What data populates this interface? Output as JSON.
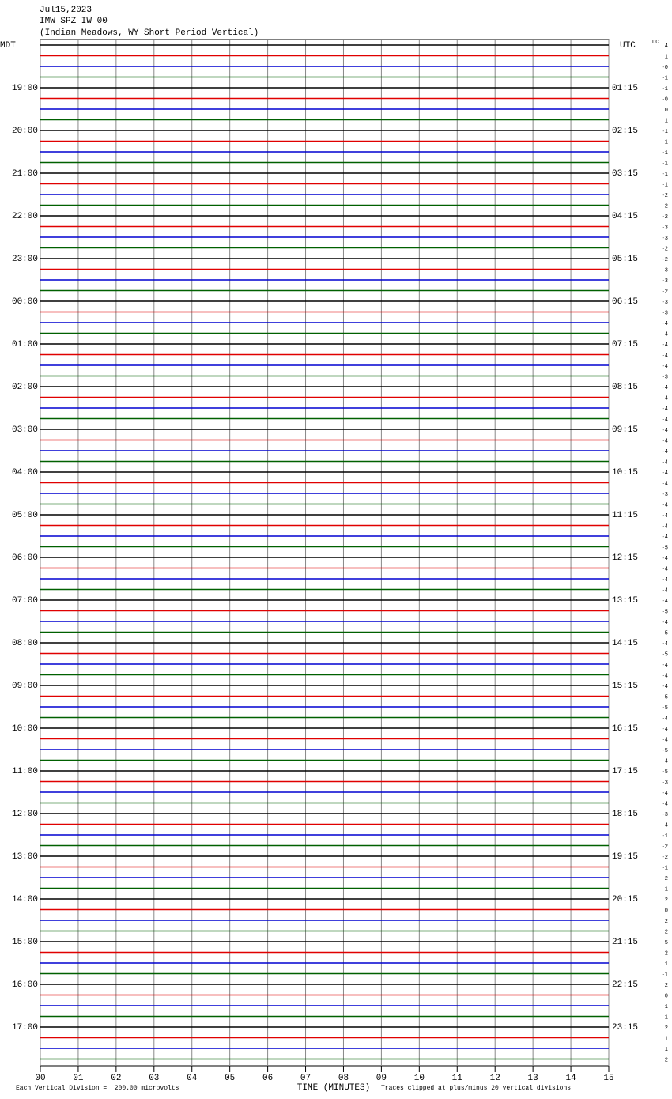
{
  "chart_data": {
    "type": "helicorder",
    "header": [
      "Jul15,2023",
      "IMW SPZ IW 00",
      "(Indian Meadows, WY Short Period Vertical)"
    ],
    "left_zone": "MDT",
    "right_zone": "UTC",
    "dc_header": "DC",
    "hours_local": [
      "19:00",
      "20:00",
      "21:00",
      "22:00",
      "23:00",
      "00:00",
      "01:00",
      "02:00",
      "03:00",
      "04:00",
      "05:00",
      "06:00",
      "07:00",
      "08:00",
      "09:00",
      "10:00",
      "11:00",
      "12:00",
      "13:00",
      "14:00",
      "15:00",
      "16:00",
      "17:00"
    ],
    "hours_utc": [
      "01:15",
      "02:15",
      "03:15",
      "04:15",
      "05:15",
      "06:15",
      "07:15",
      "08:15",
      "09:15",
      "10:15",
      "11:15",
      "12:15",
      "13:15",
      "14:15",
      "15:15",
      "16:15",
      "17:15",
      "18:15",
      "19:15",
      "20:15",
      "21:15",
      "22:15",
      "23:15"
    ],
    "trace_colors": [
      "#000000",
      "#e00000",
      "#0000d0",
      "#006000"
    ],
    "dc": [
      4,
      1,
      {
        "value": 0,
        "label": "-0"
      },
      -1,
      -1,
      {
        "value": 0,
        "label": "-0"
      },
      0,
      1,
      -1,
      -1,
      -1,
      -1,
      -1,
      -1,
      -2,
      -2,
      -2,
      -3,
      -3,
      -2,
      -2,
      -3,
      -3,
      -2,
      -3,
      -3,
      -4,
      -4,
      -4,
      -4,
      -4,
      -3,
      -4,
      -4,
      -4,
      -4,
      -4,
      -4,
      -4,
      -4,
      -4,
      -4,
      -3,
      -4,
      -4,
      -4,
      -4,
      -5,
      -4,
      -4,
      -4,
      -4,
      -4,
      -5,
      -4,
      -5,
      -4,
      -5,
      -4,
      -4,
      -4,
      -5,
      -5,
      -4,
      -4,
      -4,
      -5,
      -4,
      -5,
      -3,
      -4,
      -4,
      -3,
      -4,
      -1,
      -2,
      -2,
      -1,
      2,
      -1,
      2,
      0,
      2,
      2,
      5,
      2,
      1,
      -1,
      2,
      0,
      1,
      1,
      2,
      1,
      1,
      2
    ],
    "xlim": [
      0,
      15
    ],
    "xticks": [
      {
        "value": 0,
        "label": "00"
      },
      {
        "value": 1,
        "label": "01"
      },
      {
        "value": 2,
        "label": "02"
      },
      {
        "value": 3,
        "label": "03"
      },
      {
        "value": 4,
        "label": "04"
      },
      {
        "value": 5,
        "label": "05"
      },
      {
        "value": 6,
        "label": "06"
      },
      {
        "value": 7,
        "label": "07"
      },
      {
        "value": 8,
        "label": "08"
      },
      {
        "value": 9,
        "label": "09"
      },
      {
        "value": 10,
        "label": "10"
      },
      {
        "value": 11,
        "label": "11"
      },
      {
        "value": 12,
        "label": "12"
      },
      {
        "value": 13,
        "label": "13"
      },
      {
        "value": 14,
        "label": "14"
      },
      {
        "value": 15,
        "label": "15"
      }
    ],
    "x_label": "TIME (MINUTES)",
    "scale_note": "Each Vertical Division =  200.00 microvolts",
    "clip_note": "Traces clipped at plus/minus 20 vertical divisions"
  }
}
